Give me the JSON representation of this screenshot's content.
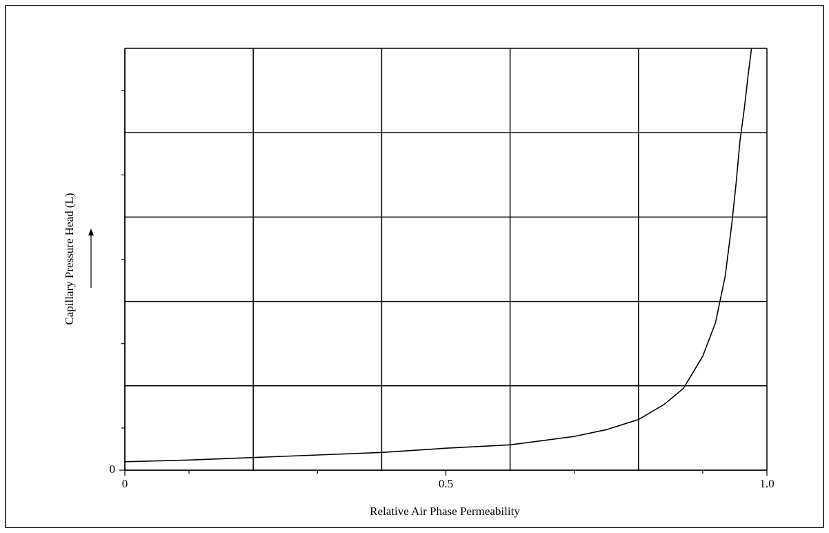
{
  "chart_data": {
    "type": "line",
    "xlabel": "Relative Air Phase Permeability",
    "ylabel": "Capillary Pressure Head (L)",
    "series": [
      {
        "color": "#000000",
        "x": [
          0,
          0.1,
          0.2,
          0.3,
          0.4,
          0.5,
          0.6,
          0.7,
          0.75,
          0.8,
          0.84,
          0.87,
          0.9,
          0.92,
          0.935,
          0.945,
          0.952,
          0.958,
          0.965,
          0.971,
          0.976
        ],
        "values": [
          0.1,
          0.12,
          0.15,
          0.18,
          0.21,
          0.26,
          0.3,
          0.4,
          0.48,
          0.6,
          0.78,
          0.97,
          1.35,
          1.75,
          2.3,
          2.9,
          3.4,
          3.9,
          4.3,
          4.7,
          5.0
        ]
      }
    ],
    "xlim": [
      0,
      1
    ],
    "ylim": [
      0,
      5
    ],
    "xticks": [
      0,
      0.5,
      {
        "value": 1,
        "label": "1.0"
      }
    ],
    "yticks": [
      0
    ],
    "xgrid": [
      0.2,
      0.4,
      0.6,
      0.8,
      1
    ],
    "ygrid": [
      1,
      2,
      3,
      4,
      5
    ],
    "xminor": [
      0.1,
      0.3,
      0.5,
      0.7,
      0.9
    ],
    "yminor": [
      0.5,
      1.5,
      2.5,
      3.5,
      4.5
    ],
    "grid": true
  }
}
